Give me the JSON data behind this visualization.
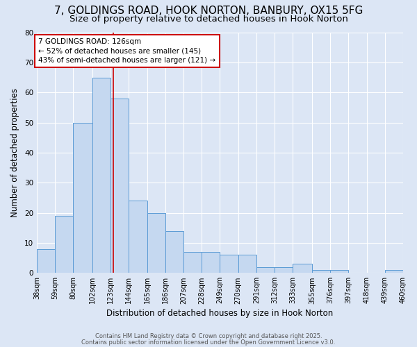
{
  "title1": "7, GOLDINGS ROAD, HOOK NORTON, BANBURY, OX15 5FG",
  "title2": "Size of property relative to detached houses in Hook Norton",
  "xlabel": "Distribution of detached houses by size in Hook Norton",
  "ylabel": "Number of detached properties",
  "bar_values": [
    8,
    19,
    50,
    65,
    58,
    24,
    20,
    14,
    7,
    7,
    6,
    6,
    2,
    2,
    3,
    1,
    1,
    0,
    0,
    1
  ],
  "bin_edges": [
    38,
    59,
    80,
    102,
    123,
    144,
    165,
    186,
    207,
    228,
    249,
    270,
    291,
    312,
    333,
    355,
    376,
    397,
    418,
    439,
    460
  ],
  "bar_color": "#c5d8f0",
  "bar_edgecolor": "#5b9bd5",
  "property_size": 126,
  "redline_color": "#cc0000",
  "annotation_line1": "7 GOLDINGS ROAD: 126sqm",
  "annotation_line2": "← 52% of detached houses are smaller (145)",
  "annotation_line3": "43% of semi-detached houses are larger (121) →",
  "annotation_box_color": "#ffffff",
  "annotation_box_edgecolor": "#cc0000",
  "ylim": [
    0,
    80
  ],
  "yticks": [
    0,
    10,
    20,
    30,
    40,
    50,
    60,
    70,
    80
  ],
  "footer1": "Contains HM Land Registry data © Crown copyright and database right 2025.",
  "footer2": "Contains public sector information licensed under the Open Government Licence v3.0.",
  "background_color": "#dce6f5",
  "plot_bg_color": "#dce6f5",
  "grid_color": "#ffffff",
  "title_fontsize": 11,
  "subtitle_fontsize": 9.5,
  "label_fontsize": 8.5,
  "tick_fontsize": 7,
  "annotation_fontsize": 7.5,
  "footer_fontsize": 6
}
